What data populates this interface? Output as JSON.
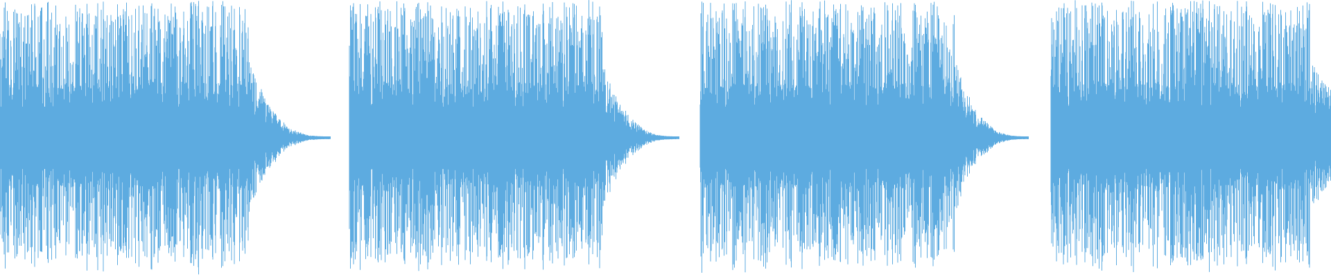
{
  "waveform": {
    "color": "#5dabe0",
    "background": "#ffffff",
    "clip_count": 4
  }
}
